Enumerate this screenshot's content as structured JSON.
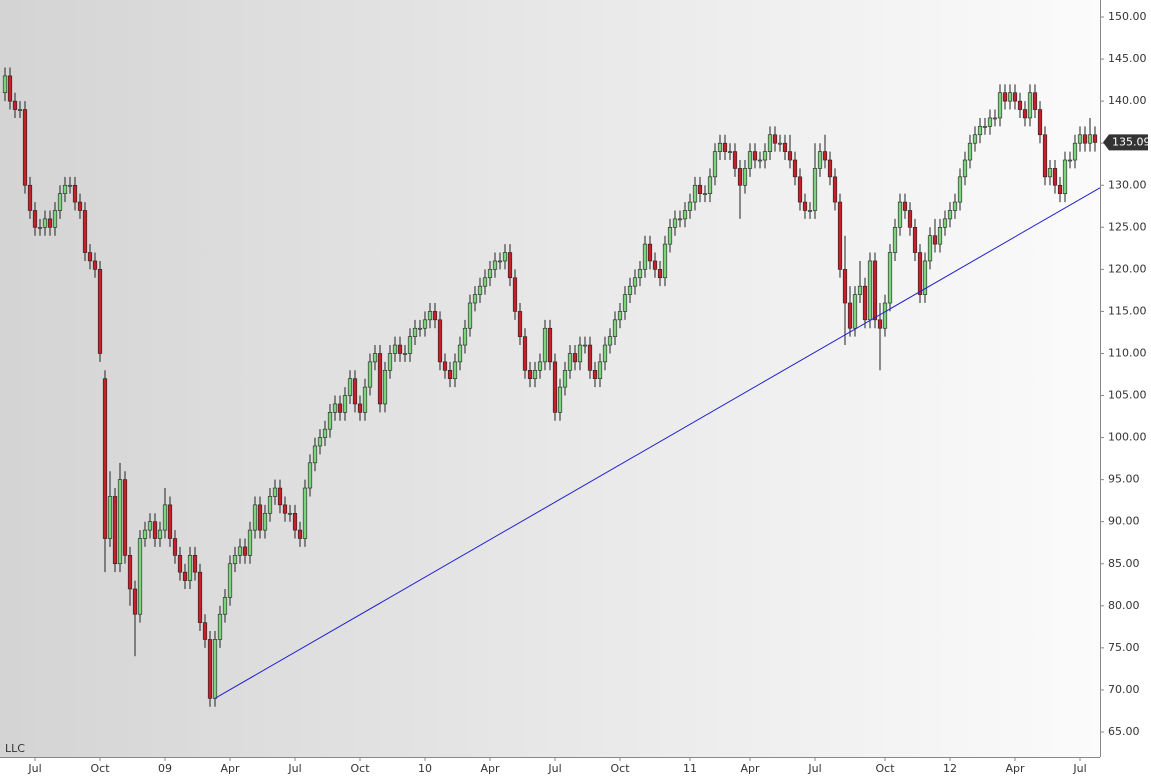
{
  "chart_data": {
    "type": "candlestick",
    "annotation": "LLC",
    "up_color": "#7fd37f",
    "down_color": "#c8202a",
    "trendline_color": "#2020d0",
    "xlim": [
      -1,
      219
    ],
    "ylim": [
      62.5,
      152.5
    ],
    "yticks": [
      {
        "value": 65,
        "label": "65.00"
      },
      {
        "value": 70,
        "label": "70.00"
      },
      {
        "value": 75,
        "label": "75.00"
      },
      {
        "value": 80,
        "label": "80.00"
      },
      {
        "value": 85,
        "label": "85.00"
      },
      {
        "value": 90,
        "label": "90.00"
      },
      {
        "value": 95,
        "label": "95.00"
      },
      {
        "value": 100,
        "label": "100.00"
      },
      {
        "value": 105,
        "label": "105.00"
      },
      {
        "value": 110,
        "label": "110.00"
      },
      {
        "value": 115,
        "label": "115.00"
      },
      {
        "value": 120,
        "label": "120.00"
      },
      {
        "value": 125,
        "label": "125.00"
      },
      {
        "value": 130,
        "label": "130.00"
      },
      {
        "value": 135,
        "label": "135.00"
      },
      {
        "value": 140,
        "label": "140.00"
      },
      {
        "value": 145,
        "label": "145.00"
      },
      {
        "value": 150,
        "label": "150.00"
      }
    ],
    "xticks": [
      {
        "value": 6,
        "label": "Jul"
      },
      {
        "value": 19,
        "label": "Oct"
      },
      {
        "value": 32,
        "label": "09"
      },
      {
        "value": 45,
        "label": "Apr"
      },
      {
        "value": 58,
        "label": "Jul"
      },
      {
        "value": 71,
        "label": "Oct"
      },
      {
        "value": 84,
        "label": "10"
      },
      {
        "value": 97,
        "label": "Apr"
      },
      {
        "value": 110,
        "label": "Jul"
      },
      {
        "value": 123,
        "label": "Oct"
      },
      {
        "value": 137,
        "label": "11"
      },
      {
        "value": 149,
        "label": "Apr"
      },
      {
        "value": 162,
        "label": "Jul"
      },
      {
        "value": 176,
        "label": "Oct"
      },
      {
        "value": 189,
        "label": "12"
      },
      {
        "value": 202,
        "label": "Apr"
      },
      {
        "value": 215,
        "label": "Jul"
      }
    ],
    "trendline": {
      "x": [
        42,
        219
      ],
      "y": [
        69,
        129.7
      ]
    },
    "candles": [
      [
        141,
        144,
        140,
        143
      ],
      [
        143,
        144,
        139,
        140
      ],
      [
        140,
        141,
        138,
        139
      ],
      [
        139,
        140,
        138,
        139
      ],
      [
        139,
        140,
        129,
        130
      ],
      [
        130,
        131,
        126,
        127
      ],
      [
        127,
        128,
        124,
        125
      ],
      [
        125,
        126,
        124,
        125
      ],
      [
        125,
        127,
        124,
        126
      ],
      [
        126,
        127,
        124,
        125
      ],
      [
        125,
        128,
        124,
        127
      ],
      [
        127,
        130,
        126,
        129
      ],
      [
        129,
        131,
        128,
        130
      ],
      [
        130,
        131,
        129,
        130
      ],
      [
        130,
        131,
        127,
        128
      ],
      [
        128,
        129,
        126,
        127
      ],
      [
        127,
        128,
        121,
        122
      ],
      [
        122,
        123,
        120,
        121
      ],
      [
        121,
        122,
        119,
        120
      ],
      [
        120,
        121,
        109,
        110
      ],
      [
        107,
        108,
        84,
        88
      ],
      [
        88,
        96,
        87,
        93
      ],
      [
        93,
        94,
        84,
        85
      ],
      [
        85,
        97,
        84,
        95
      ],
      [
        95,
        96,
        85,
        86
      ],
      [
        86,
        87,
        80,
        82
      ],
      [
        82,
        83,
        74,
        79
      ],
      [
        79,
        89,
        78,
        88
      ],
      [
        88,
        90,
        87,
        89
      ],
      [
        89,
        91,
        88,
        90
      ],
      [
        90,
        91,
        87,
        88
      ],
      [
        88,
        90,
        87,
        89
      ],
      [
        89,
        94,
        88,
        92
      ],
      [
        92,
        93,
        87,
        88
      ],
      [
        88,
        89,
        85,
        86
      ],
      [
        86,
        87,
        83,
        84
      ],
      [
        84,
        85,
        82,
        83
      ],
      [
        83,
        87,
        82,
        86
      ],
      [
        86,
        87,
        83,
        84
      ],
      [
        84,
        85,
        77,
        78
      ],
      [
        78,
        79,
        75,
        76
      ],
      [
        76,
        77,
        68,
        69
      ],
      [
        69,
        77,
        68,
        76
      ],
      [
        76,
        80,
        75,
        79
      ],
      [
        79,
        82,
        78,
        81
      ],
      [
        81,
        86,
        80,
        85
      ],
      [
        85,
        87,
        84,
        86
      ],
      [
        86,
        88,
        85,
        87
      ],
      [
        87,
        88,
        85,
        86
      ],
      [
        86,
        90,
        85,
        89
      ],
      [
        89,
        93,
        88,
        92
      ],
      [
        92,
        93,
        88,
        89
      ],
      [
        89,
        92,
        88,
        91
      ],
      [
        91,
        94,
        90,
        93
      ],
      [
        93,
        95,
        92,
        94
      ],
      [
        94,
        95,
        91,
        92
      ],
      [
        92,
        93,
        90,
        91
      ],
      [
        91,
        92,
        90,
        91
      ],
      [
        91,
        92,
        88,
        89
      ],
      [
        89,
        90,
        87,
        88
      ],
      [
        88,
        95,
        87,
        94
      ],
      [
        94,
        98,
        93,
        97
      ],
      [
        97,
        100,
        96,
        99
      ],
      [
        99,
        101,
        98,
        100
      ],
      [
        100,
        102,
        99,
        101
      ],
      [
        101,
        104,
        100,
        103
      ],
      [
        103,
        105,
        102,
        104
      ],
      [
        104,
        105,
        102,
        103
      ],
      [
        103,
        106,
        102,
        105
      ],
      [
        105,
        108,
        104,
        107
      ],
      [
        107,
        108,
        103,
        104
      ],
      [
        104,
        105,
        102,
        103
      ],
      [
        103,
        107,
        102,
        106
      ],
      [
        106,
        110,
        105,
        109
      ],
      [
        109,
        111,
        108,
        110
      ],
      [
        110,
        111,
        103,
        104
      ],
      [
        104,
        109,
        103,
        108
      ],
      [
        108,
        111,
        107,
        110
      ],
      [
        110,
        112,
        109,
        111
      ],
      [
        111,
        112,
        109,
        110
      ],
      [
        110,
        111,
        109,
        110
      ],
      [
        110,
        113,
        109,
        112
      ],
      [
        112,
        114,
        111,
        113
      ],
      [
        113,
        114,
        112,
        113
      ],
      [
        113,
        115,
        112,
        114
      ],
      [
        114,
        116,
        113,
        115
      ],
      [
        115,
        116,
        113,
        114
      ],
      [
        114,
        115,
        108,
        109
      ],
      [
        109,
        110,
        107,
        108
      ],
      [
        108,
        109,
        106,
        107
      ],
      [
        107,
        110,
        106,
        109
      ],
      [
        109,
        112,
        108,
        111
      ],
      [
        111,
        114,
        110,
        113
      ],
      [
        113,
        117,
        112,
        116
      ],
      [
        116,
        118,
        115,
        117
      ],
      [
        117,
        119,
        116,
        118
      ],
      [
        118,
        120,
        117,
        119
      ],
      [
        119,
        121,
        118,
        120
      ],
      [
        120,
        122,
        119,
        121
      ],
      [
        121,
        122,
        120,
        121
      ],
      [
        121,
        123,
        120,
        122
      ],
      [
        122,
        123,
        118,
        119
      ],
      [
        119,
        120,
        114,
        115
      ],
      [
        115,
        116,
        111,
        112
      ],
      [
        112,
        113,
        107,
        108
      ],
      [
        108,
        109,
        106,
        107
      ],
      [
        107,
        109,
        106,
        108
      ],
      [
        108,
        110,
        107,
        109
      ],
      [
        109,
        114,
        108,
        113
      ],
      [
        113,
        114,
        108,
        109
      ],
      [
        109,
        110,
        102,
        103
      ],
      [
        103,
        107,
        102,
        106
      ],
      [
        106,
        109,
        105,
        108
      ],
      [
        108,
        111,
        107,
        110
      ],
      [
        110,
        111,
        108,
        109
      ],
      [
        109,
        112,
        108,
        111
      ],
      [
        111,
        112,
        110,
        111
      ],
      [
        111,
        112,
        107,
        108
      ],
      [
        108,
        109,
        106,
        107
      ],
      [
        107,
        110,
        106,
        109
      ],
      [
        109,
        112,
        108,
        111
      ],
      [
        111,
        113,
        110,
        112
      ],
      [
        112,
        115,
        111,
        114
      ],
      [
        114,
        116,
        113,
        115
      ],
      [
        115,
        118,
        114,
        117
      ],
      [
        117,
        119,
        116,
        118
      ],
      [
        118,
        120,
        117,
        119
      ],
      [
        119,
        121,
        118,
        120
      ],
      [
        120,
        124,
        119,
        123
      ],
      [
        123,
        124,
        120,
        121
      ],
      [
        121,
        122,
        119,
        120
      ],
      [
        120,
        121,
        118,
        119
      ],
      [
        119,
        124,
        118,
        123
      ],
      [
        123,
        126,
        122,
        125
      ],
      [
        125,
        127,
        124,
        126
      ],
      [
        126,
        127,
        125,
        126
      ],
      [
        126,
        128,
        125,
        127
      ],
      [
        127,
        129,
        126,
        128
      ],
      [
        128,
        131,
        127,
        130
      ],
      [
        130,
        131,
        128,
        129
      ],
      [
        129,
        130,
        128,
        129
      ],
      [
        129,
        132,
        128,
        131
      ],
      [
        131,
        135,
        130,
        134
      ],
      [
        134,
        136,
        133,
        135
      ],
      [
        135,
        136,
        133,
        134
      ],
      [
        134,
        135,
        133,
        134
      ],
      [
        134,
        135,
        131,
        132
      ],
      [
        132,
        133,
        126,
        130
      ],
      [
        130,
        133,
        129,
        132
      ],
      [
        132,
        135,
        131,
        134
      ],
      [
        134,
        135,
        132,
        133
      ],
      [
        133,
        134,
        132,
        133
      ],
      [
        133,
        135,
        132,
        134
      ],
      [
        134,
        137,
        133,
        136
      ],
      [
        136,
        137,
        134,
        135
      ],
      [
        135,
        136,
        134,
        135
      ],
      [
        135,
        136,
        133,
        134
      ],
      [
        134,
        136,
        132,
        133
      ],
      [
        133,
        134,
        130,
        131
      ],
      [
        131,
        132,
        127,
        128
      ],
      [
        128,
        129,
        126,
        127
      ],
      [
        127,
        128,
        126,
        127
      ],
      [
        127,
        135,
        126,
        132
      ],
      [
        132,
        135,
        131,
        134
      ],
      [
        134,
        136,
        132,
        133
      ],
      [
        133,
        134,
        130,
        131
      ],
      [
        131,
        132,
        127,
        128
      ],
      [
        128,
        129,
        119,
        120
      ],
      [
        120,
        124,
        111,
        116
      ],
      [
        116,
        118,
        112,
        113
      ],
      [
        113,
        118,
        112,
        117
      ],
      [
        117,
        121,
        116,
        118
      ],
      [
        118,
        119,
        113,
        114
      ],
      [
        114,
        122,
        113,
        121
      ],
      [
        121,
        122,
        113,
        114
      ],
      [
        114,
        116,
        108,
        113
      ],
      [
        113,
        117,
        112,
        116
      ],
      [
        116,
        123,
        115,
        122
      ],
      [
        122,
        126,
        121,
        125
      ],
      [
        125,
        129,
        124,
        128
      ],
      [
        128,
        129,
        126,
        127
      ],
      [
        127,
        128,
        124,
        125
      ],
      [
        125,
        126,
        121,
        122
      ],
      [
        122,
        123,
        116,
        117
      ],
      [
        117,
        122,
        116,
        121
      ],
      [
        121,
        125,
        120,
        124
      ],
      [
        124,
        126,
        122,
        123
      ],
      [
        123,
        126,
        122,
        125
      ],
      [
        125,
        127,
        124,
        126
      ],
      [
        126,
        128,
        125,
        127
      ],
      [
        127,
        129,
        126,
        128
      ],
      [
        128,
        132,
        127,
        131
      ],
      [
        131,
        134,
        130,
        133
      ],
      [
        133,
        136,
        132,
        135
      ],
      [
        135,
        137,
        134,
        136
      ],
      [
        136,
        138,
        135,
        137
      ],
      [
        137,
        138,
        136,
        137
      ],
      [
        137,
        139,
        136,
        138
      ],
      [
        138,
        139,
        137,
        138
      ],
      [
        138,
        142,
        137,
        141
      ],
      [
        141,
        142,
        139,
        140
      ],
      [
        140,
        142,
        139,
        141
      ],
      [
        141,
        142,
        139,
        140
      ],
      [
        140,
        141,
        138,
        139
      ],
      [
        139,
        140,
        137,
        138
      ],
      [
        138,
        142,
        137,
        141
      ],
      [
        141,
        142,
        138,
        139
      ],
      [
        139,
        140,
        135,
        136
      ],
      [
        136,
        137,
        130,
        131
      ],
      [
        131,
        133,
        130,
        132
      ],
      [
        132,
        133,
        129,
        130
      ],
      [
        130,
        131,
        128,
        129
      ],
      [
        129,
        134,
        128,
        133
      ],
      [
        133,
        134,
        132,
        133
      ],
      [
        133,
        136,
        132,
        135
      ],
      [
        135,
        137,
        134,
        136
      ],
      [
        136,
        137,
        134,
        135
      ],
      [
        135,
        138,
        134,
        136
      ],
      [
        136,
        137,
        134,
        135.09
      ]
    ]
  }
}
